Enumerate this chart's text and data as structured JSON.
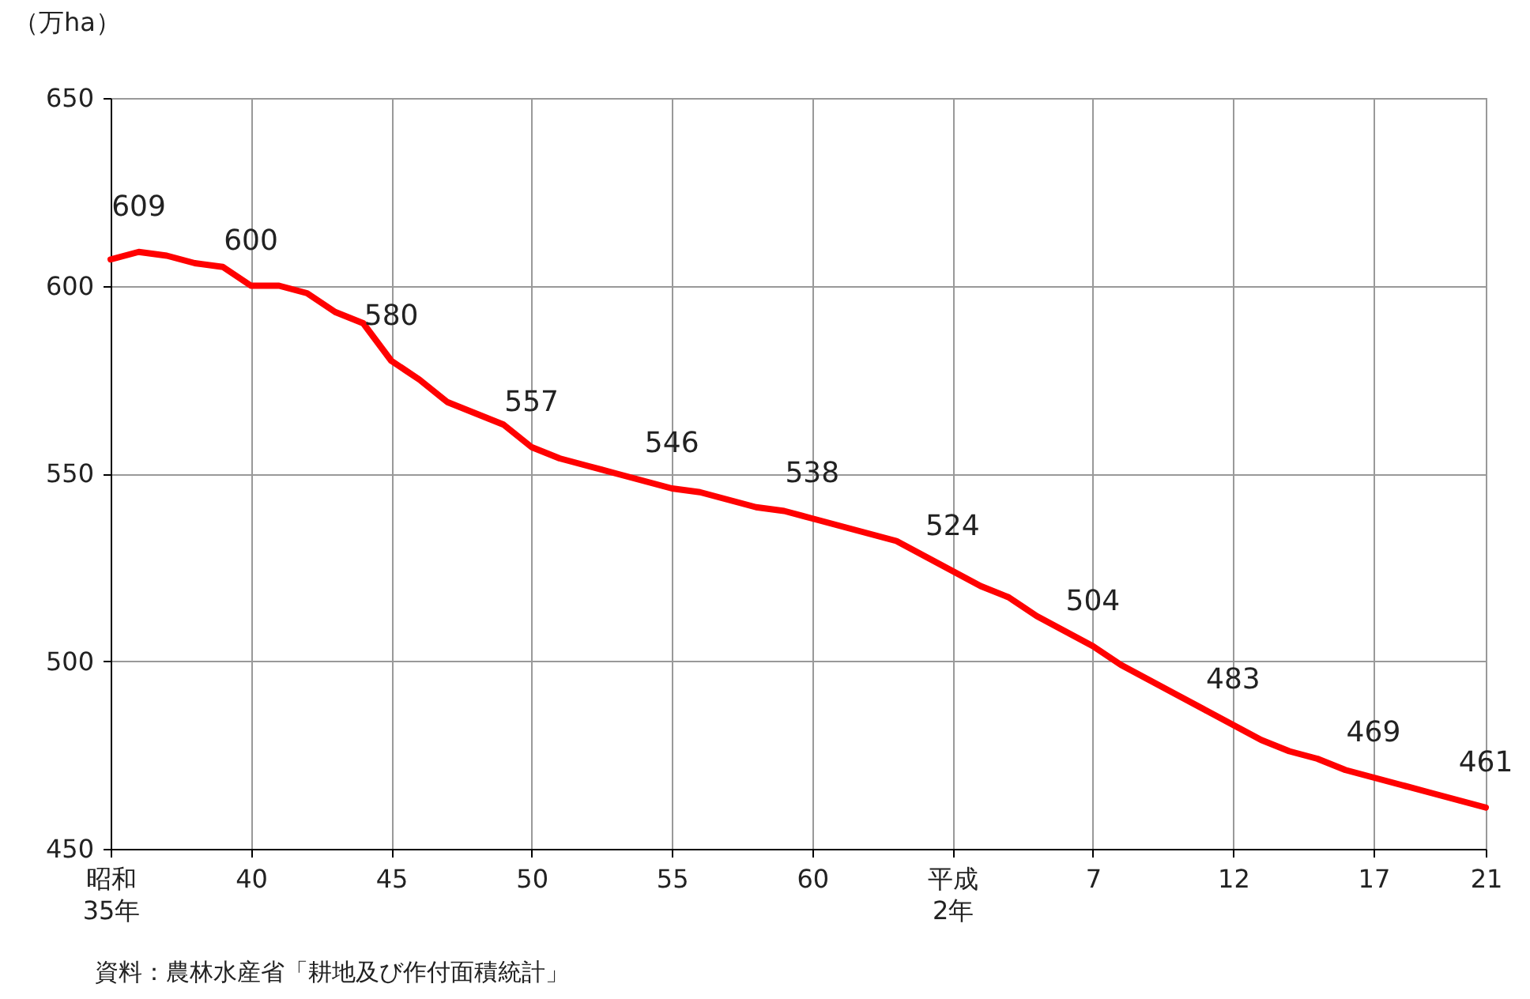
{
  "chart_data": {
    "type": "line",
    "ylabel": "（万ha）",
    "categories": [
      "昭和\n35年",
      null,
      null,
      null,
      null,
      "40",
      null,
      null,
      null,
      null,
      "45",
      null,
      null,
      null,
      null,
      "50",
      null,
      null,
      null,
      null,
      "55",
      null,
      null,
      null,
      null,
      "60",
      null,
      null,
      null,
      null,
      "平成\n2年",
      null,
      null,
      null,
      null,
      "7",
      null,
      null,
      null,
      null,
      "12",
      null,
      null,
      null,
      null,
      "17",
      null,
      null,
      null,
      "21"
    ],
    "series": [
      {
        "color": "#ff0000",
        "values": [
          607,
          609,
          608,
          606,
          605,
          600,
          600,
          598,
          593,
          590,
          580,
          575,
          569,
          566,
          563,
          557,
          554,
          552,
          550,
          548,
          546,
          545,
          543,
          541,
          540,
          538,
          536,
          534,
          532,
          528,
          524,
          520,
          517,
          512,
          508,
          504,
          499,
          495,
          491,
          487,
          483,
          479,
          476,
          474,
          471,
          469,
          467,
          465,
          463,
          461
        ],
        "value_labels": [
          null,
          "609",
          null,
          null,
          null,
          "600",
          null,
          null,
          null,
          null,
          "580",
          null,
          null,
          null,
          null,
          "557",
          null,
          null,
          null,
          null,
          "546",
          null,
          null,
          null,
          null,
          "538",
          null,
          null,
          null,
          null,
          "524",
          null,
          null,
          null,
          null,
          "504",
          null,
          null,
          null,
          null,
          "483",
          null,
          null,
          null,
          null,
          "469",
          null,
          null,
          null,
          "461"
        ]
      }
    ],
    "ylim": [
      450,
      650
    ],
    "yticks": [
      450,
      500,
      550,
      600,
      650
    ],
    "grid": true,
    "line_style": "solid",
    "marker": "none",
    "annotations": [
      "資料：農林水産省「耕地及び作付面積統計」"
    ]
  }
}
